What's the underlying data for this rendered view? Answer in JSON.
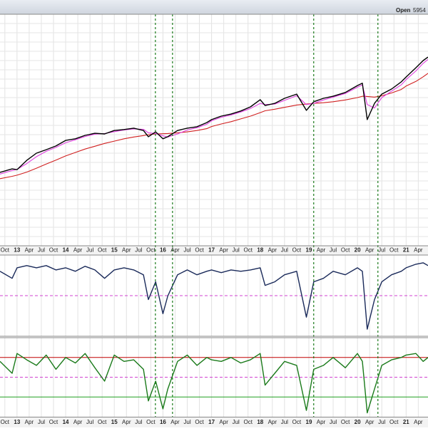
{
  "header": {
    "label": "Open",
    "value": "5954"
  },
  "chart_data": {
    "type": "line",
    "x": [
      2012.65,
      2012.9,
      2013.0,
      2013.2,
      2013.4,
      2013.6,
      2013.8,
      2014.0,
      2014.2,
      2014.4,
      2014.6,
      2014.8,
      2015.0,
      2015.2,
      2015.4,
      2015.6,
      2015.7,
      2015.85,
      2016.0,
      2016.1,
      2016.3,
      2016.5,
      2016.7,
      2016.9,
      2017.0,
      2017.2,
      2017.4,
      2017.6,
      2017.8,
      2018.0,
      2018.1,
      2018.3,
      2018.5,
      2018.75,
      2018.95,
      2019.1,
      2019.3,
      2019.5,
      2019.75,
      2020.0,
      2020.1,
      2020.2,
      2020.35,
      2020.5,
      2020.7,
      2020.9,
      2021.0,
      2021.2,
      2021.35,
      2021.45
    ],
    "xlim": [
      2012.65,
      2021.45
    ],
    "xticks": [
      {
        "value": 2012.75,
        "label": "Oct"
      },
      {
        "value": 2013,
        "label": "13"
      },
      {
        "value": 2013.25,
        "label": "Apr"
      },
      {
        "value": 2013.5,
        "label": "Jul"
      },
      {
        "value": 2013.75,
        "label": "Oct"
      },
      {
        "value": 2014,
        "label": "14"
      },
      {
        "value": 2014.25,
        "label": "Apr"
      },
      {
        "value": 2014.5,
        "label": "Jul"
      },
      {
        "value": 2014.75,
        "label": "Oct"
      },
      {
        "value": 2015,
        "label": "15"
      },
      {
        "value": 2015.25,
        "label": "Apr"
      },
      {
        "value": 2015.5,
        "label": "Jul"
      },
      {
        "value": 2015.75,
        "label": "Oct"
      },
      {
        "value": 2016,
        "label": "16"
      },
      {
        "value": 2016.25,
        "label": "Apr"
      },
      {
        "value": 2016.5,
        "label": "Jul"
      },
      {
        "value": 2016.75,
        "label": "Oct"
      },
      {
        "value": 2017,
        "label": "17"
      },
      {
        "value": 2017.25,
        "label": "Apr"
      },
      {
        "value": 2017.5,
        "label": "Jul"
      },
      {
        "value": 2017.75,
        "label": "Oct"
      },
      {
        "value": 2018,
        "label": "18"
      },
      {
        "value": 2018.25,
        "label": "Apr"
      },
      {
        "value": 2018.5,
        "label": "Jul"
      },
      {
        "value": 2018.75,
        "label": "Oct"
      },
      {
        "value": 2019,
        "label": "19"
      },
      {
        "value": 2019.25,
        "label": "Apr"
      },
      {
        "value": 2019.5,
        "label": "Jul"
      },
      {
        "value": 2019.75,
        "label": "Oct"
      },
      {
        "value": 2020,
        "label": "20"
      },
      {
        "value": 2020.25,
        "label": "Apr"
      },
      {
        "value": 2020.5,
        "label": "Jul"
      },
      {
        "value": 2020.75,
        "label": "Oct"
      },
      {
        "value": 2021,
        "label": "21"
      },
      {
        "value": 2021.25,
        "label": "Apr"
      }
    ],
    "vlines": [
      {
        "value": 2015.845,
        "color": "#1a7a1a"
      },
      {
        "value": 2016.197,
        "color": "#1a7a1a"
      },
      {
        "value": 2019.1,
        "color": "#1a7a1a"
      },
      {
        "value": 2020.42,
        "color": "#1a7a1a"
      }
    ],
    "panels": [
      {
        "ylim": [
          0,
          100
        ],
        "hlines": [],
        "series": [
          {
            "color": "#d02020",
            "values": [
              29.0,
              30.0,
              30.5,
              31.8,
              33.5,
              35.3,
              37.0,
              38.8,
              40.3,
              41.8,
              43.0,
              44.2,
              45.2,
              46.2,
              47.0,
              47.6,
              48.0,
              48.3,
              48.4,
              48.5,
              48.8,
              49.2,
              49.8,
              50.6,
              51.5,
              52.6,
              53.6,
              54.8,
              56.0,
              57.5,
              58.3,
              59.0,
              59.8,
              60.8,
              61.2,
              61.5,
              61.8,
              62.2,
              63.0,
              64.0,
              64.6,
              64.5,
              64.2,
              64.8,
              66.0,
              67.5,
              69.0,
              71.0,
              73.0,
              74.5
            ]
          },
          {
            "color": "#e040e0",
            "values": [
              31.0,
              32.5,
              33.0,
              35.5,
              38.5,
              40.8,
              42.5,
              44.5,
              45.8,
              47.2,
              48.2,
              48.5,
              49.3,
              50.0,
              50.5,
              50.3,
              48.8,
              48.5,
              47.5,
              47.0,
              48.3,
              50.0,
              51.0,
              52.5,
              54.0,
              55.5,
              56.5,
              57.8,
              59.3,
              61.5,
              61.0,
              61.2,
              62.8,
              64.8,
              61.0,
              61.5,
              63.0,
              64.2,
              65.8,
              68.5,
              69.5,
              61.0,
              59.5,
              64.0,
              66.8,
              69.5,
              71.8,
              75.5,
              78.8,
              80.5
            ]
          },
          {
            "color": "#000000",
            "values": [
              31.7,
              33.2,
              32.9,
              36.9,
              40.0,
              41.5,
              43.1,
              45.5,
              46.2,
              47.7,
              48.6,
              48.3,
              49.8,
              50.2,
              50.8,
              49.8,
              47.1,
              49.2,
              46.2,
              47.1,
              49.8,
              50.8,
              51.4,
              53.2,
              54.5,
              56.0,
              56.9,
              58.2,
              60.0,
              63.1,
              60.6,
              61.5,
              63.7,
              65.5,
              58.5,
              62.2,
              63.7,
              64.6,
              66.2,
              69.2,
              70.2,
              54.5,
              61.5,
              65.5,
              67.7,
              70.8,
              72.9,
              76.9,
              80.0,
              81.5
            ]
          }
        ]
      },
      {
        "ylim": [
          0,
          100
        ],
        "hlines": [
          {
            "value": 50,
            "color": "#d040d0",
            "dash": true
          }
        ],
        "series": [
          {
            "color": "#1a2a5a",
            "values": [
              80.0,
              71.3,
              84.3,
              87.0,
              84.3,
              87.0,
              81.7,
              84.3,
              80.0,
              86.1,
              81.7,
              71.3,
              81.7,
              84.3,
              81.7,
              75.7,
              45.2,
              67.0,
              27.8,
              49.6,
              75.7,
              81.7,
              75.7,
              80.0,
              81.7,
              78.3,
              81.7,
              80.0,
              81.7,
              84.3,
              62.6,
              67.0,
              75.7,
              80.0,
              23.5,
              67.0,
              71.3,
              80.0,
              75.7,
              84.3,
              80.0,
              8.7,
              45.2,
              67.0,
              75.7,
              80.0,
              84.3,
              88.7,
              90.4,
              87.0
            ]
          }
        ]
      },
      {
        "ylim": [
          0,
          100
        ],
        "hlines": [
          {
            "value": 75,
            "color": "#c00000",
            "dash": false
          },
          {
            "value": 50,
            "color": "#d040d0",
            "dash": true
          },
          {
            "value": 25,
            "color": "#20a020",
            "dash": false
          }
        ],
        "series": [
          {
            "color": "#1a7a1a",
            "values": [
              70,
              55,
              80,
              72,
              65,
              78,
              60,
              75,
              68,
              80,
              62,
              45,
              78,
              70,
              72,
              60,
              20,
              45,
              10,
              35,
              70,
              78,
              65,
              75,
              72,
              70,
              75,
              68,
              72,
              80,
              40,
              55,
              70,
              65,
              8,
              60,
              65,
              75,
              62,
              80,
              70,
              5,
              35,
              65,
              72,
              75,
              78,
              80,
              70,
              75
            ]
          }
        ]
      }
    ]
  }
}
